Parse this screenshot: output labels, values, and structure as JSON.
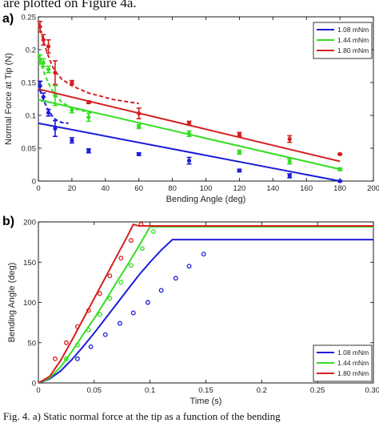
{
  "page": {
    "top_text": "are plotted on Figure 4a.",
    "bottom_text": "Fig. 4. a) Static normal force at the tip as a function of the bending"
  },
  "chart_data": [
    {
      "type": "line",
      "panel_label": "a)",
      "title": "",
      "xlabel": "Bending Angle (deg)",
      "ylabel": "Normal Force at Tip (N)",
      "xlim": [
        0,
        200
      ],
      "ylim": [
        0,
        0.25
      ],
      "xticks": [
        0,
        20,
        40,
        60,
        80,
        100,
        120,
        140,
        160,
        180,
        200
      ],
      "yticks": [
        0,
        0.05,
        0.1,
        0.15,
        0.2,
        0.25
      ],
      "ytick_labels": [
        "0",
        "0.05",
        "0.1",
        "0.15",
        "0.2",
        "0.25"
      ],
      "grid": false,
      "legend_position": "top-right",
      "series": [
        {
          "name": "1.08 mNm",
          "color": "#1c1cd8",
          "line": {
            "x": [
              0,
              180
            ],
            "y": [
              0.088,
              0.0
            ]
          },
          "dashed": {
            "x": [
              0,
              2,
              4,
              6,
              8,
              10,
              14,
              18
            ],
            "y": [
              0.148,
              0.13,
              0.118,
              0.108,
              0.1,
              0.094,
              0.089,
              0.088
            ]
          },
          "points": [
            {
              "x": 1,
              "y": 0.145,
              "err": 0.007
            },
            {
              "x": 3,
              "y": 0.128,
              "err": 0.006
            },
            {
              "x": 6,
              "y": 0.104,
              "err": 0.005
            },
            {
              "x": 10,
              "y": 0.08,
              "err": 0.012
            },
            {
              "x": 20,
              "y": 0.062,
              "err": 0.004
            },
            {
              "x": 30,
              "y": 0.046,
              "err": 0.003
            },
            {
              "x": 60,
              "y": 0.041,
              "err": 0.002
            },
            {
              "x": 90,
              "y": 0.031,
              "err": 0.005
            },
            {
              "x": 120,
              "y": 0.016,
              "err": 0.002
            },
            {
              "x": 150,
              "y": 0.008,
              "err": 0.003
            },
            {
              "x": 180,
              "y": 0.0,
              "err": 0.001
            }
          ]
        },
        {
          "name": "1.44 mNm",
          "color": "#33dd22",
          "line": {
            "x": [
              0,
              180
            ],
            "y": [
              0.124,
              0.018
            ]
          },
          "dashed": {
            "x": [
              0,
              2,
              4,
              6,
              8,
              10,
              14,
              20,
              28,
              34
            ],
            "y": [
              0.195,
              0.176,
              0.161,
              0.149,
              0.139,
              0.131,
              0.12,
              0.111,
              0.106,
              0.104
            ]
          },
          "points": [
            {
              "x": 1,
              "y": 0.185,
              "err": 0.007
            },
            {
              "x": 3,
              "y": 0.18,
              "err": 0.006
            },
            {
              "x": 6,
              "y": 0.17,
              "err": 0.005
            },
            {
              "x": 10,
              "y": 0.13,
              "err": 0.015
            },
            {
              "x": 20,
              "y": 0.108,
              "err": 0.004
            },
            {
              "x": 30,
              "y": 0.097,
              "err": 0.006
            },
            {
              "x": 60,
              "y": 0.083,
              "err": 0.003
            },
            {
              "x": 90,
              "y": 0.072,
              "err": 0.004
            },
            {
              "x": 120,
              "y": 0.044,
              "err": 0.003
            },
            {
              "x": 150,
              "y": 0.03,
              "err": 0.004
            },
            {
              "x": 180,
              "y": 0.018,
              "err": 0.002
            }
          ]
        },
        {
          "name": "1.80 mNm",
          "color": "#d42020",
          "line": {
            "x": [
              0,
              180
            ],
            "y": [
              0.14,
              0.03
            ]
          },
          "dashed": {
            "x": [
              0,
              2,
              4,
              6,
              8,
              10,
              14,
              20,
              30,
              45,
              60
            ],
            "y": [
              0.24,
              0.222,
              0.205,
              0.19,
              0.177,
              0.167,
              0.155,
              0.145,
              0.134,
              0.124,
              0.118
            ]
          },
          "points": [
            {
              "x": 1,
              "y": 0.235,
              "err": 0.008
            },
            {
              "x": 3,
              "y": 0.215,
              "err": 0.008
            },
            {
              "x": 6,
              "y": 0.205,
              "err": 0.01
            },
            {
              "x": 10,
              "y": 0.165,
              "err": 0.018
            },
            {
              "x": 20,
              "y": 0.15,
              "err": 0.003
            },
            {
              "x": 30,
              "y": 0.12,
              "err": 0.002
            },
            {
              "x": 60,
              "y": 0.103,
              "err": 0.008
            },
            {
              "x": 90,
              "y": 0.088,
              "err": 0.003
            },
            {
              "x": 120,
              "y": 0.071,
              "err": 0.003
            },
            {
              "x": 150,
              "y": 0.064,
              "err": 0.005
            },
            {
              "x": 180,
              "y": 0.041,
              "err": 0.001
            }
          ]
        }
      ]
    },
    {
      "type": "line",
      "panel_label": "b)",
      "title": "",
      "xlabel": "Time (s)",
      "ylabel": "Bending Angle (deg)",
      "xlim": [
        0,
        0.3
      ],
      "ylim": [
        0,
        200
      ],
      "xticks": [
        0,
        0.05,
        0.1,
        0.15,
        0.2,
        0.25,
        0.3
      ],
      "xtick_labels": [
        "0",
        "0.05",
        "0.1",
        "0.15",
        "0.2",
        "0.25",
        "0.30"
      ],
      "yticks": [
        0,
        50,
        100,
        150,
        200
      ],
      "grid": false,
      "legend_position": "bottom-right",
      "series": [
        {
          "name": "1.08 mNm",
          "color": "#1c1cd8",
          "line": {
            "x": [
              0,
              0.01,
              0.02,
              0.03,
              0.04,
              0.05,
              0.06,
              0.07,
              0.08,
              0.09,
              0.1,
              0.11,
              0.12,
              0.3
            ],
            "y": [
              0,
              5,
              15,
              29,
              45,
              62,
              80,
              98,
              116,
              134,
              150,
              165,
              178,
              178
            ]
          },
          "points": {
            "x": [
              0.035,
              0.047,
              0.06,
              0.073,
              0.085,
              0.098,
              0.11,
              0.123,
              0.135,
              0.148
            ],
            "y": [
              30,
              45,
              60,
              74,
              87,
              100,
              115,
              130,
              145,
              160
            ]
          }
        },
        {
          "name": "1.44 mNm",
          "color": "#33dd22",
          "line": {
            "x": [
              0,
              0.01,
              0.02,
              0.03,
              0.04,
              0.05,
              0.06,
              0.07,
              0.08,
              0.09,
              0.1,
              0.3
            ],
            "y": [
              0,
              6,
              20,
              39,
              60,
              80,
              102,
              125,
              147,
              170,
              194,
              194
            ]
          },
          "points": {
            "x": [
              0.025,
              0.035,
              0.045,
              0.055,
              0.064,
              0.074,
              0.083,
              0.093,
              0.103
            ],
            "y": [
              30,
              47,
              66,
              85,
              105,
              125,
              146,
              167,
              188
            ]
          }
        },
        {
          "name": "1.80 mNm",
          "color": "#d42020",
          "line": {
            "x": [
              0,
              0.01,
              0.02,
              0.03,
              0.04,
              0.05,
              0.06,
              0.07,
              0.08,
              0.085,
              0.09,
              0.3
            ],
            "y": [
              0,
              8,
              28,
              53,
              79,
              105,
              131,
              157,
              183,
              197,
              195,
              195
            ]
          },
          "points": {
            "x": [
              0.015,
              0.025,
              0.035,
              0.045,
              0.055,
              0.064,
              0.074,
              0.083,
              0.092
            ],
            "y": [
              30,
              50,
              70,
              90,
              111,
              133,
              155,
              177,
              197
            ]
          }
        }
      ]
    }
  ]
}
